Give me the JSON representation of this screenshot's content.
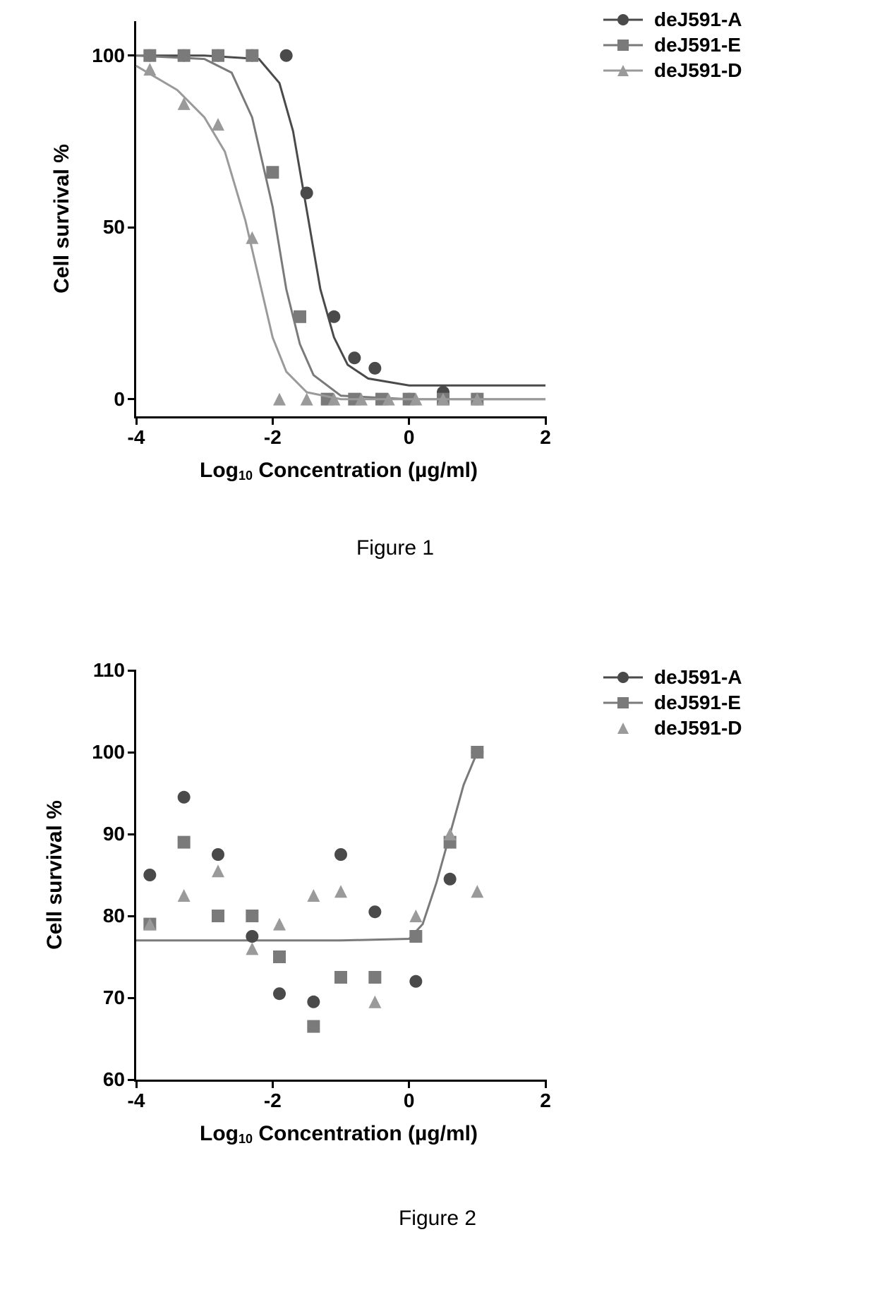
{
  "colors": {
    "seriesA": "#4a4a4a",
    "seriesE": "#7a7a7a",
    "seriesD": "#9a9a9a",
    "axis": "#000000",
    "bg": "#ffffff"
  },
  "legend": {
    "items": [
      {
        "id": "A",
        "label": "deJ591-A",
        "marker": "circle",
        "color": "#4a4a4a"
      },
      {
        "id": "E",
        "label": "deJ591-E",
        "marker": "square",
        "color": "#7a7a7a"
      },
      {
        "id": "D",
        "label": "deJ591-D",
        "marker": "triangle",
        "color": "#9a9a9a"
      }
    ]
  },
  "fig1": {
    "caption": "Figure 1",
    "xlabel_html": "Log<sub>10</sub> Concentration (µg/ml)",
    "ylabel": "Cell survival %",
    "xlim": [
      -4,
      2
    ],
    "ylim": [
      -5,
      110
    ],
    "xticks": [
      -4,
      -2,
      0,
      2
    ],
    "yticks": [
      0,
      50,
      100
    ],
    "line_width": 3,
    "marker_size": 9,
    "series": {
      "A": {
        "color": "#4a4a4a",
        "marker": "circle",
        "points": [
          [
            -3.8,
            100
          ],
          [
            -3.3,
            100
          ],
          [
            -2.8,
            100
          ],
          [
            -2.3,
            100
          ],
          [
            -1.8,
            100
          ],
          [
            -1.5,
            60
          ],
          [
            -1.1,
            24
          ],
          [
            -0.8,
            12
          ],
          [
            -0.5,
            9
          ],
          [
            0.0,
            0
          ],
          [
            0.5,
            2
          ],
          [
            1.0,
            0
          ]
        ],
        "curve": [
          [
            -4.0,
            100
          ],
          [
            -3.0,
            100
          ],
          [
            -2.2,
            99
          ],
          [
            -1.9,
            92
          ],
          [
            -1.7,
            78
          ],
          [
            -1.5,
            55
          ],
          [
            -1.3,
            32
          ],
          [
            -1.1,
            18
          ],
          [
            -0.9,
            10
          ],
          [
            -0.6,
            6
          ],
          [
            0.0,
            4
          ],
          [
            1.0,
            4
          ],
          [
            2.0,
            4
          ]
        ]
      },
      "E": {
        "color": "#7a7a7a",
        "marker": "square",
        "points": [
          [
            -3.8,
            100
          ],
          [
            -3.3,
            100
          ],
          [
            -2.8,
            100
          ],
          [
            -2.3,
            100
          ],
          [
            -2.0,
            66
          ],
          [
            -1.6,
            24
          ],
          [
            -1.2,
            0
          ],
          [
            -0.8,
            0
          ],
          [
            -0.4,
            0
          ],
          [
            0.0,
            0
          ],
          [
            0.5,
            0
          ],
          [
            1.0,
            0
          ]
        ],
        "curve": [
          [
            -4.0,
            100
          ],
          [
            -3.0,
            99
          ],
          [
            -2.6,
            95
          ],
          [
            -2.3,
            82
          ],
          [
            -2.0,
            56
          ],
          [
            -1.8,
            32
          ],
          [
            -1.6,
            16
          ],
          [
            -1.4,
            7
          ],
          [
            -1.0,
            1
          ],
          [
            0.0,
            0
          ],
          [
            2.0,
            0
          ]
        ]
      },
      "D": {
        "color": "#9a9a9a",
        "marker": "triangle",
        "points": [
          [
            -3.8,
            96
          ],
          [
            -3.3,
            86
          ],
          [
            -2.8,
            80
          ],
          [
            -2.3,
            47
          ],
          [
            -1.9,
            0
          ],
          [
            -1.5,
            0
          ],
          [
            -1.1,
            0
          ],
          [
            -0.7,
            0
          ],
          [
            -0.3,
            0
          ],
          [
            0.1,
            0
          ],
          [
            0.5,
            0
          ],
          [
            1.0,
            0
          ]
        ],
        "curve": [
          [
            -4.0,
            97
          ],
          [
            -3.4,
            90
          ],
          [
            -3.0,
            82
          ],
          [
            -2.7,
            72
          ],
          [
            -2.4,
            52
          ],
          [
            -2.2,
            35
          ],
          [
            -2.0,
            18
          ],
          [
            -1.8,
            8
          ],
          [
            -1.5,
            2
          ],
          [
            -1.0,
            0
          ],
          [
            2.0,
            0
          ]
        ]
      }
    }
  },
  "fig2": {
    "caption": "Figure 2",
    "xlabel_html": "Log<sub>10</sub> Concentration (µg/ml)",
    "ylabel": "Cell survival %",
    "xlim": [
      -4,
      2
    ],
    "ylim": [
      60,
      110
    ],
    "xticks": [
      -4,
      -2,
      0,
      2
    ],
    "yticks": [
      60,
      70,
      80,
      90,
      100,
      110
    ],
    "line_width": 3,
    "marker_size": 9,
    "fit_curve": {
      "color": "#7a7a7a",
      "points": [
        [
          -4.0,
          77
        ],
        [
          -1.0,
          77
        ],
        [
          0.0,
          77.2
        ],
        [
          0.2,
          79
        ],
        [
          0.4,
          84
        ],
        [
          0.6,
          90
        ],
        [
          0.8,
          96
        ],
        [
          1.0,
          100
        ]
      ]
    },
    "series": {
      "A": {
        "color": "#4a4a4a",
        "marker": "circle",
        "points": [
          [
            -3.8,
            85
          ],
          [
            -3.3,
            94.5
          ],
          [
            -2.8,
            87.5
          ],
          [
            -2.3,
            77.5
          ],
          [
            -1.9,
            70.5
          ],
          [
            -1.4,
            69.5
          ],
          [
            -1.0,
            87.5
          ],
          [
            -0.5,
            80.5
          ],
          [
            0.1,
            72
          ],
          [
            0.6,
            84.5
          ],
          [
            1.0,
            100
          ]
        ]
      },
      "E": {
        "color": "#7a7a7a",
        "marker": "square",
        "points": [
          [
            -3.8,
            79
          ],
          [
            -3.3,
            89
          ],
          [
            -2.8,
            80
          ],
          [
            -2.3,
            80
          ],
          [
            -1.9,
            75
          ],
          [
            -1.4,
            66.5
          ],
          [
            -1.0,
            72.5
          ],
          [
            -0.5,
            72.5
          ],
          [
            0.1,
            77.5
          ],
          [
            0.6,
            89
          ],
          [
            1.0,
            100
          ]
        ]
      },
      "D": {
        "color": "#9a9a9a",
        "marker": "triangle",
        "points": [
          [
            -3.8,
            79
          ],
          [
            -3.3,
            82.5
          ],
          [
            -2.8,
            85.5
          ],
          [
            -2.3,
            76
          ],
          [
            -1.9,
            79
          ],
          [
            -1.4,
            82.5
          ],
          [
            -1.0,
            83
          ],
          [
            -0.5,
            69.5
          ],
          [
            0.1,
            80
          ],
          [
            0.6,
            90
          ],
          [
            1.0,
            83
          ]
        ]
      }
    }
  }
}
